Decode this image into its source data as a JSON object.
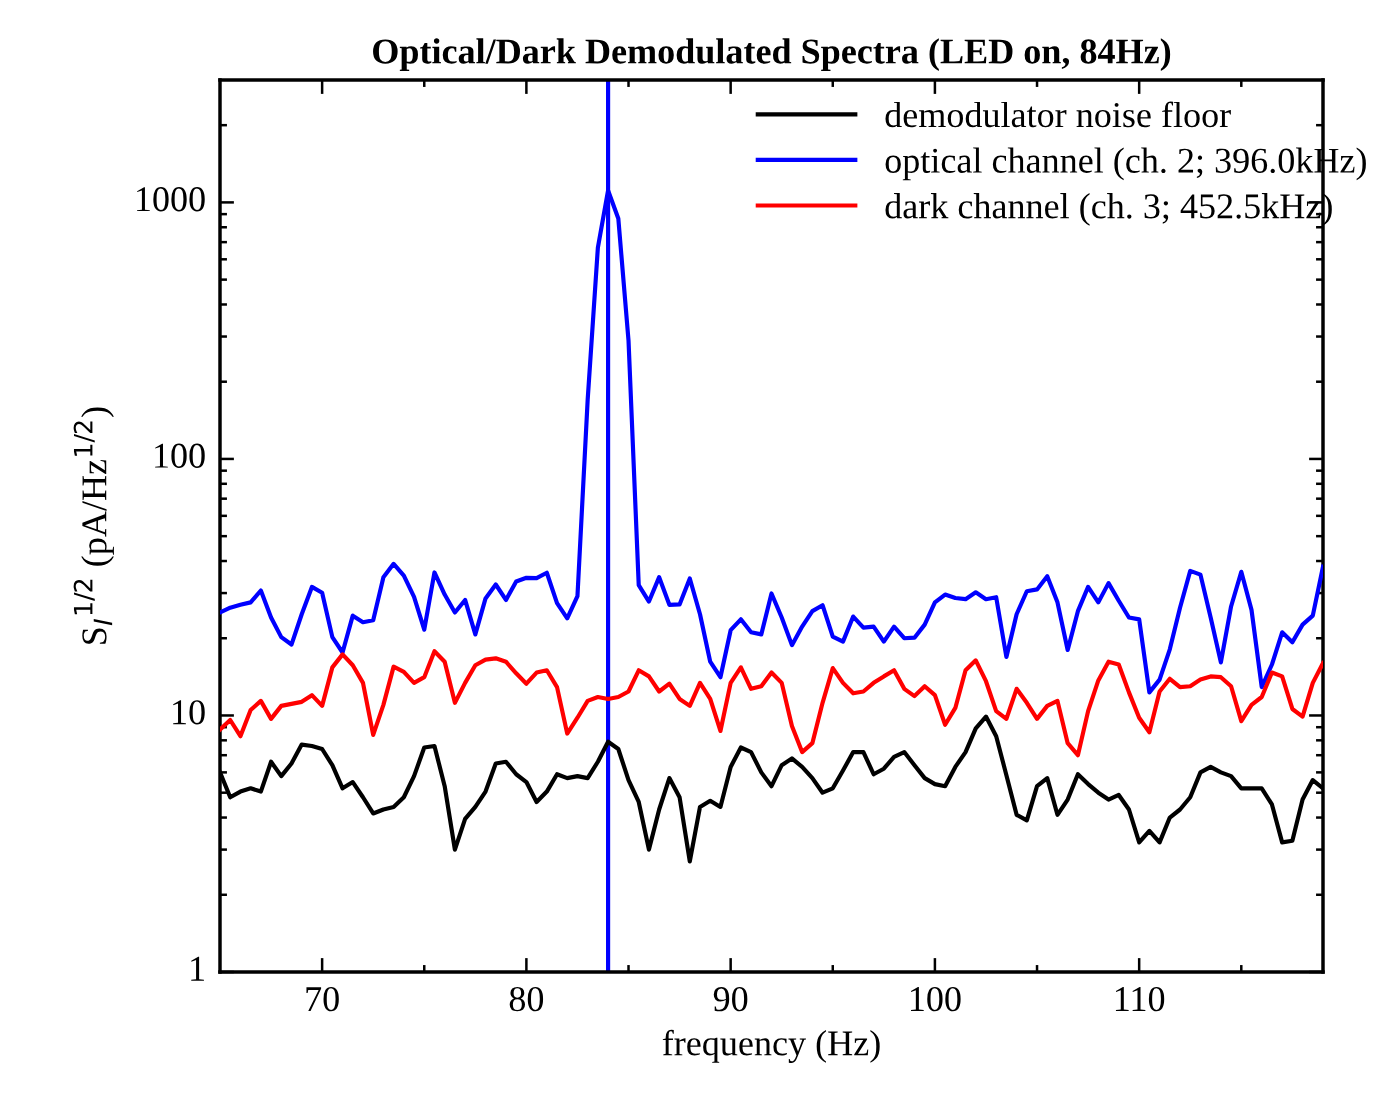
{
  "chart_data": {
    "type": "line",
    "title": "Optical/Dark Demodulated Spectra (LED on, 84Hz)",
    "xlabel": "frequency (Hz)",
    "ylabel": "S$_{I}$$^{1/2}$ (pA/Hz$^{1/2}$)",
    "x": [
      65,
      65.5,
      66,
      66.5,
      67,
      67.5,
      68,
      68.5,
      69,
      69.5,
      70,
      70.5,
      71,
      71.5,
      72,
      72.5,
      73,
      73.5,
      74,
      74.5,
      75,
      75.5,
      76,
      76.5,
      77,
      77.5,
      78,
      78.5,
      79,
      79.5,
      80,
      80.5,
      81,
      81.5,
      82,
      82.5,
      83,
      83.5,
      84,
      84.5,
      85,
      85.5,
      86,
      86.5,
      87,
      87.5,
      88,
      88.5,
      89,
      89.5,
      90,
      90.5,
      91,
      91.5,
      92,
      92.5,
      93,
      93.5,
      94,
      94.5,
      95,
      95.5,
      96,
      96.5,
      97,
      97.5,
      98,
      98.5,
      99,
      99.5,
      100,
      100.5,
      101,
      101.5,
      102,
      102.5,
      103,
      103.5,
      104,
      104.5,
      105,
      105.5,
      106,
      106.5,
      107,
      107.5,
      108,
      108.5,
      109,
      109.5,
      110,
      110.5,
      111,
      111.5,
      112,
      112.5,
      113,
      113.5,
      114,
      114.5,
      115,
      115.5,
      116,
      116.5,
      117,
      117.5,
      118,
      118.5,
      119
    ],
    "series": [
      {
        "name": "demodulator noise floor",
        "color": "#000000",
        "values": [
          6.0,
          4.8,
          5.05,
          5.2,
          5.05,
          6.6,
          5.8,
          6.5,
          7.7,
          7.6,
          7.4,
          6.4,
          5.2,
          5.5,
          4.8,
          4.15,
          4.3,
          4.4,
          4.8,
          5.8,
          7.5,
          7.6,
          5.3,
          3.0,
          3.95,
          4.4,
          5.05,
          6.5,
          6.6,
          5.9,
          5.5,
          4.6,
          5.05,
          5.9,
          5.7,
          5.8,
          5.7,
          6.6,
          7.9,
          7.4,
          5.6,
          4.6,
          3.0,
          4.3,
          5.7,
          4.8,
          2.7,
          4.4,
          4.65,
          4.4,
          6.3,
          7.5,
          7.2,
          6.0,
          5.3,
          6.4,
          6.8,
          6.3,
          5.7,
          5.0,
          5.2,
          6.1,
          7.2,
          7.2,
          5.9,
          6.2,
          6.9,
          7.2,
          6.4,
          5.7,
          5.4,
          5.3,
          6.3,
          7.2,
          8.9,
          9.9,
          8.3,
          5.85,
          4.1,
          3.9,
          5.3,
          5.7,
          4.1,
          4.7,
          5.9,
          5.4,
          5.0,
          4.7,
          4.9,
          4.3,
          3.2,
          3.55,
          3.2,
          4.0,
          4.3,
          4.8,
          6.0,
          6.3,
          6.0,
          5.8,
          5.2,
          5.2,
          5.2,
          4.5,
          3.2,
          3.25,
          4.7,
          5.6,
          5.2
        ]
      },
      {
        "name": "optical channel (ch. 2; 396.0kHz)",
        "color": "#0000ff",
        "values": [
          25.2,
          26.3,
          27,
          27.6,
          30.7,
          24.1,
          20.2,
          18.9,
          24.8,
          31.7,
          30.1,
          20.2,
          17.6,
          24.5,
          23.1,
          23.5,
          34.6,
          39,
          35.1,
          29,
          21.6,
          36.1,
          29.6,
          25.2,
          28.2,
          20.7,
          28.6,
          32.4,
          28.2,
          33.3,
          34.4,
          34.3,
          36,
          27.4,
          23.9,
          29.2,
          170,
          667,
          1113,
          866,
          289,
          32.2,
          27.8,
          34.6,
          27,
          27.1,
          34.2,
          24.8,
          16.2,
          14.1,
          21.5,
          23.7,
          21.1,
          20.7,
          29.9,
          24.1,
          18.8,
          22.2,
          25.5,
          26.9,
          20.3,
          19.4,
          24.3,
          22,
          22.2,
          19.4,
          22.2,
          20,
          20.1,
          22.6,
          27.6,
          29.6,
          28.7,
          28.4,
          30.2,
          28.4,
          28.9,
          16.9,
          24.8,
          30.5,
          31,
          34.9,
          27.6,
          18,
          25.5,
          31.7,
          27.6,
          32.8,
          28,
          24.1,
          23.7,
          12.3,
          13.8,
          18.1,
          26.3,
          36.6,
          35.4,
          24.1,
          16.1,
          26.6,
          36.3,
          25.8,
          12.9,
          15.8,
          21.1,
          19.3,
          22.6,
          24.5,
          38
        ]
      },
      {
        "name": "dark channel (ch. 3; 452.5kHz)",
        "color": "#ff0000",
        "values": [
          8.8,
          9.6,
          8.3,
          10.5,
          11.4,
          9.7,
          10.9,
          11.1,
          11.3,
          12,
          10.9,
          15.4,
          17.3,
          15.7,
          13.4,
          8.4,
          11,
          15.5,
          14.8,
          13.4,
          14.1,
          17.8,
          16.2,
          11.2,
          13.4,
          15.7,
          16.5,
          16.7,
          16.2,
          14.6,
          13.3,
          14.7,
          15,
          12.9,
          8.5,
          9.8,
          11.4,
          11.8,
          11.6,
          11.8,
          12.4,
          15,
          14.2,
          12.4,
          13.3,
          11.6,
          10.9,
          13.4,
          11.6,
          8.7,
          13.4,
          15.4,
          12.7,
          13,
          14.7,
          13.4,
          9.1,
          7.2,
          7.8,
          11.2,
          15.3,
          13.4,
          12.2,
          12.4,
          13.4,
          14.2,
          15,
          12.7,
          11.9,
          13,
          12,
          9.2,
          10.7,
          15,
          16.4,
          13.6,
          10.4,
          9.7,
          12.7,
          11.2,
          9.7,
          10.9,
          11.4,
          7.8,
          7.0,
          10.4,
          13.7,
          16.2,
          15.8,
          12.3,
          9.8,
          8.6,
          12.4,
          13.9,
          12.9,
          13,
          13.8,
          14.2,
          14.1,
          13,
          9.5,
          11,
          11.8,
          14.7,
          14.2,
          10.6,
          9.9,
          13.4,
          16
        ]
      }
    ],
    "ref_lines": [
      {
        "axis": "x",
        "value": 84,
        "color": "#0000ff"
      }
    ],
    "log": "y",
    "xlim": [
      65,
      119
    ],
    "ylim": [
      1,
      3000
    ],
    "xticks": [
      70,
      {
        "value": 75,
        "label": null
      },
      80,
      {
        "value": 85,
        "label": null
      },
      90,
      {
        "value": 95,
        "label": null
      },
      100,
      {
        "value": 105,
        "label": null
      },
      110,
      {
        "value": 115,
        "label": null
      }
    ],
    "yticks": [
      1,
      {
        "value": 2,
        "label": null
      },
      {
        "value": 3,
        "label": null
      },
      {
        "value": 4,
        "label": null
      },
      {
        "value": 5,
        "label": null
      },
      {
        "value": 6,
        "label": null
      },
      {
        "value": 7,
        "label": null
      },
      {
        "value": 8,
        "label": null
      },
      {
        "value": 9,
        "label": null
      },
      10,
      {
        "value": 20,
        "label": null
      },
      {
        "value": 30,
        "label": null
      },
      {
        "value": 40,
        "label": null
      },
      {
        "value": 50,
        "label": null
      },
      {
        "value": 60,
        "label": null
      },
      {
        "value": 70,
        "label": null
      },
      {
        "value": 80,
        "label": null
      },
      {
        "value": 90,
        "label": null
      },
      100,
      {
        "value": 200,
        "label": null
      },
      {
        "value": 300,
        "label": null
      },
      {
        "value": 400,
        "label": null
      },
      {
        "value": 500,
        "label": null
      },
      {
        "value": 600,
        "label": null
      },
      {
        "value": 700,
        "label": null
      },
      {
        "value": 800,
        "label": null
      },
      {
        "value": 900,
        "label": null
      },
      1000,
      {
        "value": 2000,
        "label": null
      }
    ],
    "grid": false,
    "legend": "top right"
  }
}
